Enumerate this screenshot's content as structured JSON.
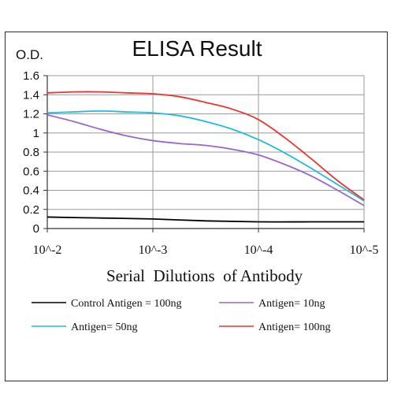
{
  "chart_data": {
    "type": "line",
    "title": "ELISA Result",
    "ylabel": "O.D.",
    "xlabel": "Serial  Dilutions  of Antibody",
    "x_tick_labels": [
      "10^-2",
      "10^-3",
      "10^-4",
      "10^-5"
    ],
    "y_tick_labels": [
      "0",
      "0.2",
      "0.4",
      "0.6",
      "0.8",
      "1",
      "1.2",
      "1.4",
      "1.6"
    ],
    "y_ticks": [
      0,
      0.2,
      0.4,
      0.6,
      0.8,
      1,
      1.2,
      1.4,
      1.6
    ],
    "x_ticks": [
      -2,
      -3,
      -4,
      -5
    ],
    "xlim": [
      -2,
      -5
    ],
    "ylim": [
      0,
      1.6
    ],
    "x_scale": "log10 dilution",
    "grid": true,
    "legend_position": "bottom",
    "series": [
      {
        "name": "Control Antigen = 100ng",
        "color": "#000000",
        "points": [
          [
            -2,
            0.12
          ],
          [
            -2.5,
            0.11
          ],
          [
            -3,
            0.1
          ],
          [
            -3.5,
            0.08
          ],
          [
            -4,
            0.07
          ],
          [
            -4.5,
            0.07
          ],
          [
            -5,
            0.07
          ]
        ]
      },
      {
        "name": "Antigen= 10ng",
        "color": "#9966cc",
        "points": [
          [
            -2,
            1.19
          ],
          [
            -2.25,
            1.12
          ],
          [
            -2.5,
            1.04
          ],
          [
            -2.75,
            0.97
          ],
          [
            -3,
            0.92
          ],
          [
            -3.25,
            0.89
          ],
          [
            -3.5,
            0.87
          ],
          [
            -3.75,
            0.83
          ],
          [
            -4,
            0.77
          ],
          [
            -4.25,
            0.67
          ],
          [
            -4.5,
            0.55
          ],
          [
            -4.75,
            0.4
          ],
          [
            -5,
            0.24
          ]
        ]
      },
      {
        "name": "Antigen= 50ng",
        "color": "#22bbdd",
        "points": [
          [
            -2,
            1.21
          ],
          [
            -2.25,
            1.22
          ],
          [
            -2.5,
            1.23
          ],
          [
            -2.75,
            1.22
          ],
          [
            -3,
            1.21
          ],
          [
            -3.25,
            1.18
          ],
          [
            -3.5,
            1.12
          ],
          [
            -3.75,
            1.04
          ],
          [
            -4,
            0.93
          ],
          [
            -4.25,
            0.79
          ],
          [
            -4.5,
            0.63
          ],
          [
            -4.75,
            0.46
          ],
          [
            -5,
            0.29
          ]
        ]
      },
      {
        "name": "Antigen= 100ng",
        "color": "#ee3333",
        "points": [
          [
            -2,
            1.42
          ],
          [
            -2.25,
            1.43
          ],
          [
            -2.5,
            1.43
          ],
          [
            -2.75,
            1.42
          ],
          [
            -3,
            1.41
          ],
          [
            -3.25,
            1.38
          ],
          [
            -3.5,
            1.32
          ],
          [
            -3.75,
            1.25
          ],
          [
            -4,
            1.14
          ],
          [
            -4.25,
            0.95
          ],
          [
            -4.5,
            0.73
          ],
          [
            -4.75,
            0.5
          ],
          [
            -5,
            0.3
          ]
        ]
      }
    ]
  }
}
